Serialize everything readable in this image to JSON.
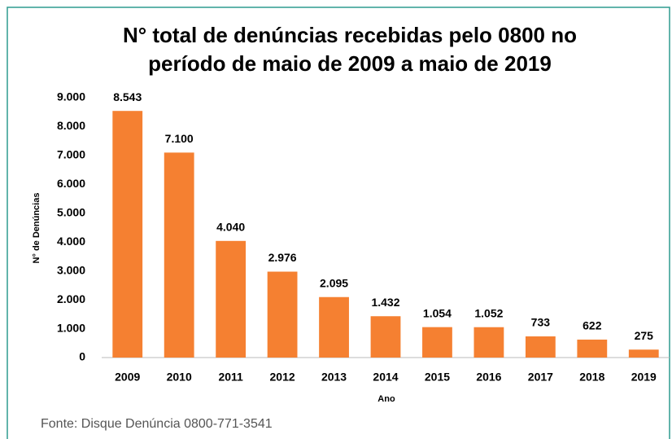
{
  "chart_data": {
    "type": "bar",
    "title": [
      "N° total de denúncias recebidas pelo 0800 no",
      "período de maio de 2009 a maio de 2019"
    ],
    "x_label": "Ano",
    "y_label": "N° de Denúncias",
    "categories": [
      "2009",
      "2010",
      "2011",
      "2012",
      "2013",
      "2014",
      "2015",
      "2016",
      "2017",
      "2018",
      "2019"
    ],
    "values": [
      8543,
      7100,
      4040,
      2976,
      2095,
      1432,
      1054,
      1052,
      733,
      622,
      275
    ],
    "value_labels": [
      "8.543",
      "7.100",
      "4.040",
      "2.976",
      "2.095",
      "1.432",
      "1.054",
      "1.052",
      "733",
      "622",
      "275"
    ],
    "color": "#f58031",
    "ylim": [
      0,
      9000
    ],
    "yticks": [
      0,
      {
        "value": 1000,
        "label": "1.000"
      },
      {
        "value": 2000,
        "label": "2.000"
      },
      {
        "value": 3000,
        "label": "3.000"
      },
      {
        "value": 4000,
        "label": "4.000"
      },
      {
        "value": 5000,
        "label": "5.000"
      },
      {
        "value": 6000,
        "label": "6.000"
      },
      {
        "value": 7000,
        "label": "7.000"
      },
      {
        "value": 8000,
        "label": "8.000"
      },
      {
        "value": 9000,
        "label": "9.000"
      }
    ],
    "grid": false,
    "source": "Fonte: Disque Denúncia 0800-771-3541"
  }
}
